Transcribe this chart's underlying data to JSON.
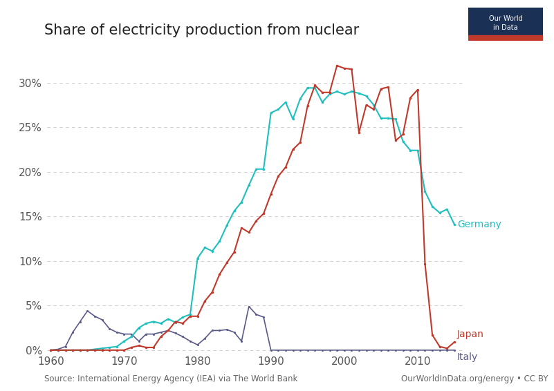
{
  "title": "Share of electricity production from nuclear",
  "source_text": "Source: International Energy Agency (IEA) via The World Bank",
  "source_right": "OurWorldInData.org/energy • CC BY",
  "background_color": "#ffffff",
  "grid_color": "#d0d0d0",
  "germany_color": "#1fbfbf",
  "japan_color": "#c0392b",
  "italy_color": "#5a5a8a",
  "germany": {
    "years": [
      1960,
      1961,
      1962,
      1963,
      1964,
      1965,
      1966,
      1967,
      1968,
      1969,
      1970,
      1971,
      1972,
      1973,
      1974,
      1975,
      1976,
      1977,
      1978,
      1979,
      1980,
      1981,
      1982,
      1983,
      1984,
      1985,
      1986,
      1987,
      1988,
      1989,
      1990,
      1991,
      1992,
      1993,
      1994,
      1995,
      1996,
      1997,
      1998,
      1999,
      2000,
      2001,
      2002,
      2003,
      2004,
      2005,
      2006,
      2007,
      2008,
      2009,
      2010,
      2011,
      2012,
      2013,
      2014,
      2015
    ],
    "values": [
      0.0,
      0.0,
      0.0,
      0.0,
      0.0,
      0.0,
      0.1,
      0.2,
      0.3,
      0.4,
      1.0,
      1.5,
      2.5,
      3.0,
      3.2,
      3.0,
      3.5,
      3.1,
      3.7,
      4.0,
      10.3,
      11.5,
      11.1,
      12.2,
      14.0,
      15.6,
      16.6,
      18.5,
      20.3,
      20.3,
      26.6,
      27.0,
      27.8,
      25.9,
      28.2,
      29.4,
      29.4,
      27.8,
      28.7,
      29.0,
      28.7,
      29.0,
      28.8,
      28.5,
      27.5,
      26.0,
      26.0,
      25.9,
      23.4,
      22.4,
      22.4,
      17.8,
      16.1,
      15.4,
      15.8,
      14.1
    ]
  },
  "japan": {
    "years": [
      1960,
      1961,
      1962,
      1963,
      1964,
      1965,
      1966,
      1967,
      1968,
      1969,
      1970,
      1971,
      1972,
      1973,
      1974,
      1975,
      1976,
      1977,
      1978,
      1979,
      1980,
      1981,
      1982,
      1983,
      1984,
      1985,
      1986,
      1987,
      1988,
      1989,
      1990,
      1991,
      1992,
      1993,
      1994,
      1995,
      1996,
      1997,
      1998,
      1999,
      2000,
      2001,
      2002,
      2003,
      2004,
      2005,
      2006,
      2007,
      2008,
      2009,
      2010,
      2011,
      2012,
      2013,
      2014,
      2015
    ],
    "values": [
      0.0,
      0.0,
      0.0,
      0.0,
      0.0,
      0.0,
      0.0,
      0.0,
      0.0,
      0.0,
      0.0,
      0.3,
      0.5,
      0.3,
      0.3,
      1.5,
      2.2,
      3.2,
      3.0,
      3.8,
      3.8,
      5.5,
      6.5,
      8.5,
      9.8,
      11.0,
      13.7,
      13.2,
      14.5,
      15.3,
      17.5,
      19.5,
      20.5,
      22.5,
      23.3,
      27.4,
      29.7,
      28.9,
      28.9,
      31.9,
      31.6,
      31.5,
      24.4,
      27.5,
      27.0,
      29.3,
      29.5,
      23.5,
      24.2,
      28.3,
      29.2,
      9.7,
      1.7,
      0.4,
      0.2,
      0.9
    ]
  },
  "italy": {
    "years": [
      1960,
      1961,
      1962,
      1963,
      1964,
      1965,
      1966,
      1967,
      1968,
      1969,
      1970,
      1971,
      1972,
      1973,
      1974,
      1975,
      1976,
      1977,
      1978,
      1979,
      1980,
      1981,
      1982,
      1983,
      1984,
      1985,
      1986,
      1987,
      1988,
      1989,
      1990,
      1991,
      1992,
      1993,
      1994,
      1995,
      1996,
      1997,
      1998,
      1999,
      2000,
      2001,
      2002,
      2003,
      2004,
      2005,
      2006,
      2007,
      2008,
      2009,
      2010,
      2011,
      2012,
      2013,
      2014,
      2015
    ],
    "values": [
      0.0,
      0.1,
      0.4,
      2.0,
      3.2,
      4.4,
      3.8,
      3.4,
      2.4,
      2.0,
      1.8,
      1.8,
      1.0,
      1.8,
      1.8,
      2.0,
      2.2,
      1.9,
      1.5,
      1.0,
      0.6,
      1.3,
      2.2,
      2.2,
      2.3,
      2.0,
      1.0,
      4.9,
      4.0,
      3.7,
      0.0,
      0.0,
      0.0,
      0.0,
      0.0,
      0.0,
      0.0,
      0.0,
      0.0,
      0.0,
      0.0,
      0.0,
      0.0,
      0.0,
      0.0,
      0.0,
      0.0,
      0.0,
      0.0,
      0.0,
      0.0,
      0.0,
      0.0,
      0.0,
      0.0,
      0.0
    ]
  },
  "xlim": [
    1959.5,
    2016.5
  ],
  "ylim": [
    -0.002,
    0.34
  ],
  "yticks": [
    0.0,
    0.05,
    0.1,
    0.15,
    0.2,
    0.25,
    0.3
  ],
  "ytick_labels": [
    "0%",
    "5%",
    "10%",
    "15%",
    "20%",
    "25%",
    "30%"
  ],
  "xticks": [
    1960,
    1970,
    1980,
    1990,
    2000,
    2010
  ],
  "logo_bg": "#1a3055",
  "logo_red": "#c0392b",
  "title_fontsize": 15,
  "tick_fontsize": 11,
  "annotation_fontsize": 10
}
